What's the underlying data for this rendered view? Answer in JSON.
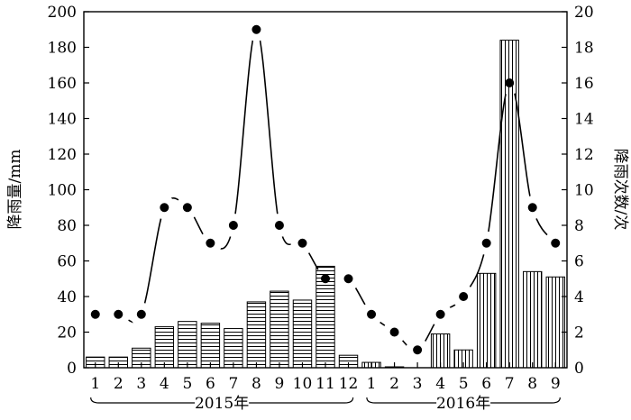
{
  "chart_data": {
    "type": "bar",
    "categories": [
      "1",
      "2",
      "3",
      "4",
      "5",
      "6",
      "7",
      "8",
      "9",
      "10",
      "11",
      "12",
      "1",
      "2",
      "3",
      "4",
      "5",
      "6",
      "7",
      "8",
      "9"
    ],
    "groups": [
      {
        "label": "2015年",
        "count": 12
      },
      {
        "label": "2016年",
        "count": 9
      }
    ],
    "series": [
      {
        "values": [
          6,
          6,
          11,
          23,
          26,
          25,
          22,
          37,
          43,
          38,
          57,
          7,
          3,
          0.5,
          0,
          19,
          10,
          53,
          184,
          54,
          51
        ],
        "axis": "left",
        "kind": "bar"
      },
      {
        "values": [
          3,
          3,
          3,
          9,
          9,
          7,
          8,
          19,
          8,
          7,
          5,
          5,
          3,
          2,
          1,
          3,
          4,
          7,
          16,
          9,
          7
        ],
        "axis": "right",
        "kind": "line"
      }
    ],
    "ylabel": "降雨量/mm",
    "y2label": "降雨次数/次",
    "ylim": [
      0,
      200
    ],
    "y2lim": [
      0,
      20
    ],
    "yticks": [
      "0",
      "20",
      "40",
      "60",
      "80",
      "100",
      "120",
      "140",
      "160",
      "180",
      "200"
    ],
    "y2ticks": [
      "0",
      "2",
      "4",
      "6",
      "8",
      "10",
      "12",
      "14",
      "16",
      "18",
      "20"
    ],
    "grid": false,
    "legend": "none"
  }
}
